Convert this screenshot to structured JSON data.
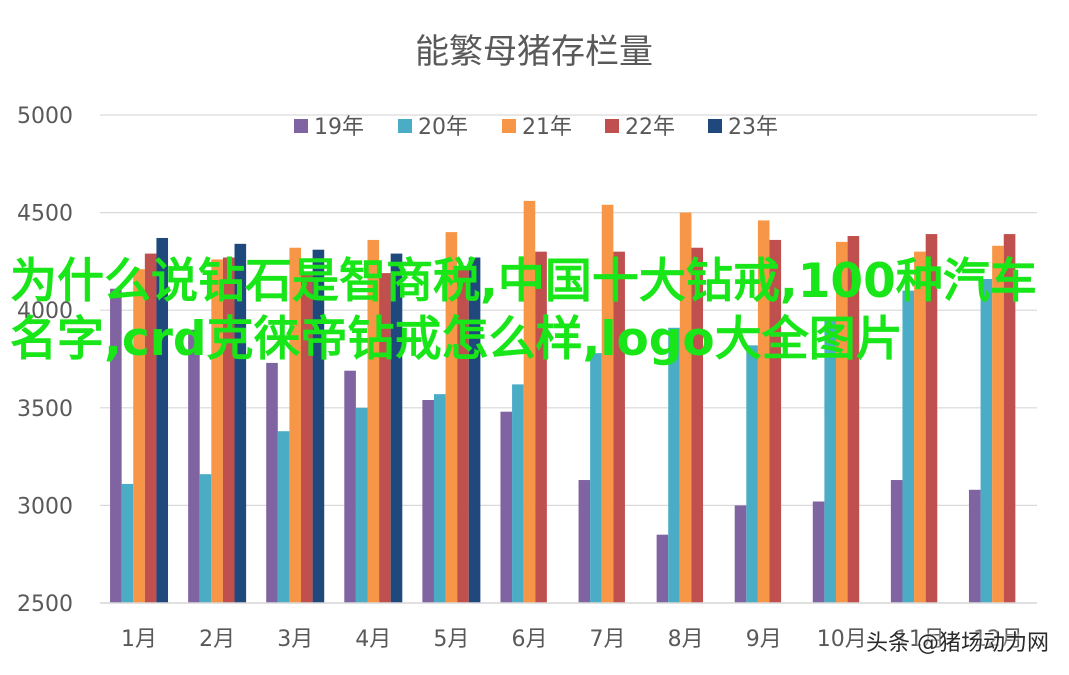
{
  "chart_data": {
    "type": "bar",
    "title": "能繁母猪存栏量",
    "categories": [
      "1月",
      "2月",
      "3月",
      "4月",
      "5月",
      "6月",
      "7月",
      "8月",
      "9月",
      "10月",
      "11月",
      "12月"
    ],
    "ylim": [
      2500,
      5000
    ],
    "yticks": [
      "5000",
      "4500",
      "4000",
      "3500",
      "3000",
      "2500"
    ],
    "grid": true,
    "legend_position": "top",
    "series": [
      {
        "name": "19年",
        "color": "#8064a2",
        "values": [
          4110,
          3900,
          3730,
          3690,
          3540,
          3480,
          3130,
          2850,
          3000,
          3020,
          3130,
          3080
        ]
      },
      {
        "name": "20年",
        "color": "#4bacc6",
        "values": [
          3110,
          3160,
          3380,
          3500,
          3570,
          3620,
          3780,
          3910,
          3820,
          3960,
          4100,
          4160
        ]
      },
      {
        "name": "21年",
        "color": "#f79646",
        "values": [
          4210,
          4260,
          4320,
          4360,
          4400,
          4560,
          4540,
          4500,
          4460,
          4350,
          4300,
          4330
        ]
      },
      {
        "name": "22年",
        "color": "#c0504d",
        "values": [
          4290,
          4270,
          4180,
          4190,
          4210,
          4300,
          4300,
          4320,
          4360,
          4380,
          4390,
          4390
        ]
      },
      {
        "name": "23年",
        "color": "#1f497d",
        "values": [
          4370,
          4340,
          4310,
          4290,
          4270,
          null,
          null,
          null,
          null,
          null,
          null,
          null
        ]
      }
    ]
  },
  "overlay_text": "为什么说钻石是智商税,中国十大钻戒,100种汽车名字,crd克徕帝钻戒怎么样,logo大全图片",
  "watermark": "头条 @猪场动力网"
}
